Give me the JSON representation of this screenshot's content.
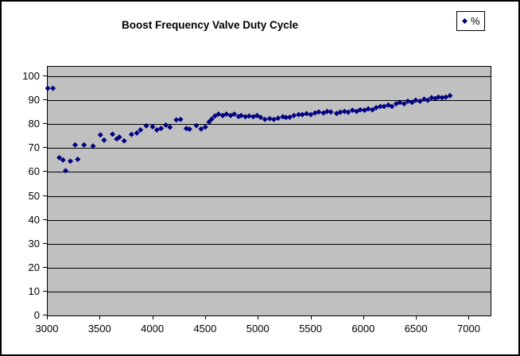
{
  "chart": {
    "title": "Boost Frequency Valve Duty Cycle",
    "legend": {
      "marker_icon": "diamond-icon",
      "series_label": "%"
    },
    "colors": {
      "marker": "#000080",
      "plot_background": "#C0C0C0",
      "gridline": "#000000",
      "chart_background": "#FFFFFF",
      "border": "#000000",
      "text": "#000000"
    }
  },
  "chart_data": {
    "type": "scatter",
    "title": "Boost Frequency Valve Duty Cycle",
    "xlabel": "",
    "ylabel": "",
    "grid": "horizontal",
    "legend_position": "top-right",
    "x_ticks": [
      3000,
      3500,
      4000,
      4500,
      5000,
      5500,
      6000,
      6500,
      7000
    ],
    "y_ticks": [
      0,
      10,
      20,
      30,
      40,
      50,
      60,
      70,
      80,
      90,
      100
    ],
    "xlim": [
      3000,
      7200
    ],
    "ylim": [
      0,
      104
    ],
    "series": [
      {
        "name": "%",
        "marker": "diamond",
        "color": "#000080",
        "points": [
          [
            3000,
            95
          ],
          [
            3050,
            95
          ],
          [
            3110,
            66
          ],
          [
            3145,
            65
          ],
          [
            3170,
            60.5
          ],
          [
            3215,
            64.5
          ],
          [
            3260,
            71.3
          ],
          [
            3285,
            65.3
          ],
          [
            3345,
            71.3
          ],
          [
            3430,
            70.8
          ],
          [
            3500,
            75.5
          ],
          [
            3535,
            73.3
          ],
          [
            3615,
            75.8
          ],
          [
            3655,
            73.8
          ],
          [
            3680,
            74.6
          ],
          [
            3725,
            73
          ],
          [
            3795,
            75.7
          ],
          [
            3845,
            76.3
          ],
          [
            3880,
            77.6
          ],
          [
            3935,
            79.3
          ],
          [
            3995,
            78.9
          ],
          [
            4035,
            77.6
          ],
          [
            4075,
            78.2
          ],
          [
            4120,
            79.6
          ],
          [
            4160,
            78.7
          ],
          [
            4220,
            81.8
          ],
          [
            4260,
            82
          ],
          [
            4315,
            78.2
          ],
          [
            4345,
            77.9
          ],
          [
            4410,
            79.4
          ],
          [
            4455,
            78
          ],
          [
            4495,
            78.8
          ],
          [
            4530,
            80.9
          ],
          [
            4555,
            82.1
          ],
          [
            4585,
            83.4
          ],
          [
            4620,
            84.2
          ],
          [
            4660,
            83.6
          ],
          [
            4695,
            84.2
          ],
          [
            4735,
            83.6
          ],
          [
            4770,
            84.2
          ],
          [
            4810,
            83.2
          ],
          [
            4835,
            83.6
          ],
          [
            4875,
            83.1
          ],
          [
            4910,
            83.4
          ],
          [
            4950,
            83.1
          ],
          [
            4985,
            83.6
          ],
          [
            5020,
            82.8
          ],
          [
            5060,
            82
          ],
          [
            5105,
            82.3
          ],
          [
            5145,
            82
          ],
          [
            5185,
            82.5
          ],
          [
            5230,
            83.1
          ],
          [
            5260,
            82.8
          ],
          [
            5295,
            82.9
          ],
          [
            5335,
            83.6
          ],
          [
            5380,
            84
          ],
          [
            5415,
            84
          ],
          [
            5455,
            84.4
          ],
          [
            5495,
            84
          ],
          [
            5535,
            84.7
          ],
          [
            5570,
            85.1
          ],
          [
            5615,
            84.7
          ],
          [
            5650,
            85.3
          ],
          [
            5685,
            85.1
          ],
          [
            5740,
            84.5
          ],
          [
            5775,
            85
          ],
          [
            5815,
            85.3
          ],
          [
            5850,
            85
          ],
          [
            5890,
            85.8
          ],
          [
            5930,
            85.3
          ],
          [
            5965,
            86
          ],
          [
            6005,
            85.8
          ],
          [
            6040,
            86.4
          ],
          [
            6080,
            86
          ],
          [
            6115,
            86.9
          ],
          [
            6155,
            87.4
          ],
          [
            6190,
            87.4
          ],
          [
            6230,
            88
          ],
          [
            6265,
            87.4
          ],
          [
            6305,
            88.5
          ],
          [
            6340,
            89.1
          ],
          [
            6380,
            88.5
          ],
          [
            6415,
            89.6
          ],
          [
            6455,
            89.1
          ],
          [
            6490,
            90
          ],
          [
            6530,
            89.6
          ],
          [
            6570,
            90.4
          ],
          [
            6605,
            90
          ],
          [
            6640,
            91.1
          ],
          [
            6675,
            90.7
          ],
          [
            6705,
            91.3
          ],
          [
            6740,
            91.1
          ],
          [
            6775,
            91.3
          ],
          [
            6815,
            91.9
          ]
        ]
      }
    ]
  }
}
